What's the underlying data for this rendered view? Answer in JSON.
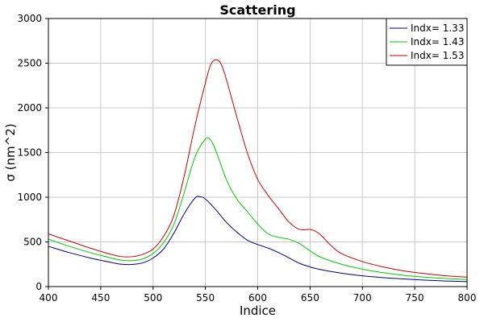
{
  "chart_data": {
    "type": "line",
    "title": "Scattering",
    "xlabel": "Indice",
    "ylabel": "σ (nm^2)",
    "xlim": [
      400,
      800
    ],
    "ylim": [
      0,
      3000
    ],
    "xticks": [
      400,
      450,
      500,
      550,
      600,
      650,
      700,
      750,
      800
    ],
    "yticks": [
      0,
      500,
      1000,
      1500,
      2000,
      2500,
      3000
    ],
    "grid": true,
    "legend_position": "top-right",
    "series": [
      {
        "name": "Indx= 1.33",
        "color": "#000080",
        "x": [
          400,
          420,
          440,
          460,
          470,
          480,
          490,
          500,
          510,
          520,
          530,
          540,
          545,
          550,
          560,
          570,
          580,
          590,
          600,
          610,
          620,
          630,
          640,
          650,
          660,
          680,
          700,
          720,
          740,
          760,
          780,
          800
        ],
        "y": [
          450,
          380,
          320,
          270,
          250,
          248,
          265,
          320,
          420,
          600,
          820,
          990,
          1005,
          980,
          860,
          720,
          610,
          520,
          470,
          430,
          380,
          320,
          260,
          220,
          190,
          150,
          120,
          100,
          85,
          72,
          62,
          55
        ]
      },
      {
        "name": "Indx= 1.43",
        "color": "#00cc00",
        "x": [
          400,
          420,
          440,
          460,
          470,
          480,
          490,
          500,
          510,
          520,
          530,
          540,
          550,
          555,
          560,
          570,
          580,
          590,
          600,
          610,
          620,
          630,
          640,
          650,
          660,
          680,
          700,
          720,
          740,
          760,
          780,
          800
        ],
        "y": [
          530,
          450,
          380,
          320,
          295,
          290,
          310,
          370,
          490,
          700,
          1060,
          1450,
          1650,
          1640,
          1520,
          1200,
          980,
          840,
          700,
          590,
          550,
          530,
          480,
          400,
          330,
          250,
          195,
          155,
          125,
          105,
          90,
          80
        ]
      },
      {
        "name": "Indx= 1.53",
        "color": "#cc0000",
        "x": [
          400,
          420,
          440,
          460,
          470,
          480,
          490,
          500,
          510,
          520,
          530,
          540,
          550,
          555,
          560,
          565,
          570,
          580,
          590,
          600,
          610,
          620,
          630,
          640,
          650,
          655,
          660,
          670,
          680,
          700,
          720,
          740,
          760,
          780,
          800
        ],
        "y": [
          590,
          510,
          430,
          360,
          335,
          335,
          360,
          420,
          560,
          800,
          1250,
          1800,
          2280,
          2480,
          2540,
          2490,
          2320,
          1900,
          1500,
          1200,
          1020,
          870,
          720,
          640,
          640,
          620,
          580,
          460,
          370,
          280,
          220,
          175,
          145,
          120,
          105
        ]
      }
    ]
  }
}
